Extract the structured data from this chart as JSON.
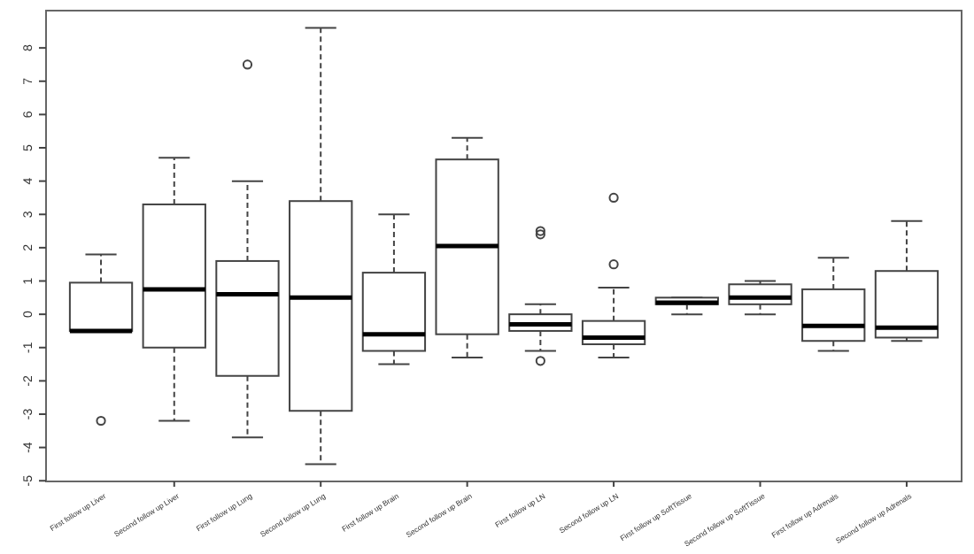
{
  "chart_data": {
    "type": "box",
    "categories": [
      "First follow up Liver",
      "Second follow up Liver",
      "First follow up Lung",
      "Second follow up Lung",
      "First follow up Brain",
      "Second follow up Brain",
      "First follow up LN",
      "Second follow up LN",
      "First follow up SoftTissue",
      "Second follow up SoftTissue",
      "First follow up Adrenals",
      "Second follow up Adrenals"
    ],
    "boxes": [
      {
        "low": -0.5,
        "q1": -0.5,
        "median": -0.5,
        "q3": 0.95,
        "high": 1.8,
        "outliers": [
          -3.2
        ]
      },
      {
        "low": -3.2,
        "q1": -1.0,
        "median": 0.75,
        "q3": 3.3,
        "high": 4.7
      },
      {
        "low": -3.7,
        "q1": -1.85,
        "median": 0.6,
        "q3": 1.6,
        "high": 4.0,
        "outliers": [
          7.5
        ]
      },
      {
        "low": -4.5,
        "q1": -2.9,
        "median": 0.5,
        "q3": 3.4,
        "high": 8.6
      },
      {
        "low": -1.5,
        "q1": -1.1,
        "median": -0.6,
        "q3": 1.25,
        "high": 3.0
      },
      {
        "low": -1.3,
        "q1": -0.6,
        "median": 2.05,
        "q3": 4.65,
        "high": 5.3
      },
      {
        "low": -1.1,
        "q1": -0.5,
        "median": -0.3,
        "q3": 0.0,
        "high": 0.3,
        "outliers": [
          2.5,
          2.4,
          -1.4
        ]
      },
      {
        "low": -1.3,
        "q1": -0.9,
        "median": -0.7,
        "q3": -0.2,
        "high": 0.8,
        "outliers": [
          3.5,
          1.5
        ]
      },
      {
        "low": 0.0,
        "q1": 0.3,
        "median": 0.35,
        "q3": 0.5,
        "high": 0.5
      },
      {
        "low": 0.0,
        "q1": 0.3,
        "median": 0.5,
        "q3": 0.9,
        "high": 1.0
      },
      {
        "low": -1.1,
        "q1": -0.8,
        "median": -0.35,
        "q3": 0.75,
        "high": 1.7
      },
      {
        "low": -0.8,
        "q1": -0.7,
        "median": -0.4,
        "q3": 1.3,
        "high": 2.8
      }
    ],
    "ylim": [
      -5.02,
      9.12
    ],
    "yticks": [
      -5,
      -4,
      -3,
      -2,
      -1,
      0,
      1,
      2,
      3,
      4,
      5,
      6,
      7,
      8
    ],
    "grid": false
  }
}
